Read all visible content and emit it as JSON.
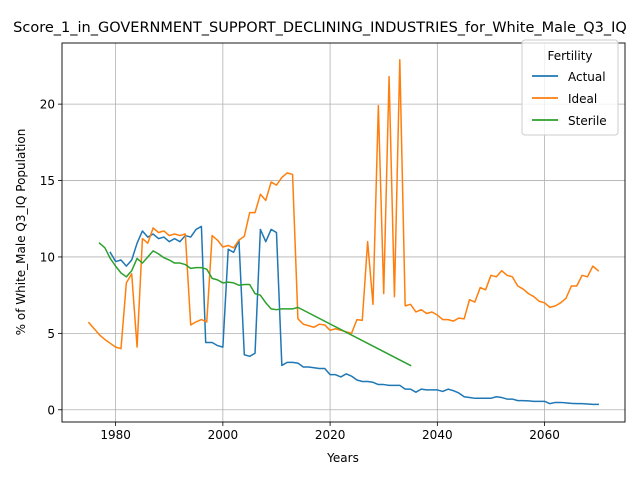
{
  "chart_data": {
    "type": "line",
    "title": "Score_1_in_GOVERNMENT_SUPPORT_DECLINING_INDUSTRIES_for_White_Male_Q3_IQ",
    "xlabel": "Years",
    "ylabel": "% of White_Male Q3_IQ Population",
    "xlim": [
      1970,
      2075
    ],
    "ylim": [
      -0.8,
      24
    ],
    "xticks": [
      1980,
      2000,
      2020,
      2040,
      2060
    ],
    "yticks": [
      0,
      5,
      10,
      15,
      20
    ],
    "grid": true,
    "legend": {
      "title": "Fertility",
      "placement": "top-right"
    },
    "series": [
      {
        "name": "Actual",
        "color": "#1f77b4",
        "points": [
          [
            1979,
            10.3
          ],
          [
            1980,
            9.7
          ],
          [
            1981,
            9.8
          ],
          [
            1982,
            9.4
          ],
          [
            1983,
            9.8
          ],
          [
            1984,
            10.9
          ],
          [
            1985,
            11.7
          ],
          [
            1986,
            11.3
          ],
          [
            1987,
            11.5
          ],
          [
            1988,
            11.2
          ],
          [
            1989,
            11.3
          ],
          [
            1990,
            11.0
          ],
          [
            1991,
            11.2
          ],
          [
            1992,
            11.0
          ],
          [
            1993,
            11.4
          ],
          [
            1994,
            11.3
          ],
          [
            1995,
            11.8
          ],
          [
            1996,
            12.0
          ],
          [
            1996.8,
            4.4
          ],
          [
            1998,
            4.4
          ],
          [
            1999,
            4.2
          ],
          [
            2000,
            4.1
          ],
          [
            2001,
            10.5
          ],
          [
            2002,
            10.3
          ],
          [
            2003,
            11.1
          ],
          [
            2004,
            3.6
          ],
          [
            2005,
            3.5
          ],
          [
            2006,
            3.7
          ],
          [
            2007,
            11.8
          ],
          [
            2008,
            11.0
          ],
          [
            2009,
            11.8
          ],
          [
            2010,
            11.6
          ],
          [
            2011,
            2.9
          ],
          [
            2012,
            3.1
          ],
          [
            2013,
            3.1
          ],
          [
            2014,
            3.05
          ],
          [
            2015,
            2.8
          ],
          [
            2016,
            2.8
          ],
          [
            2017,
            2.75
          ],
          [
            2018,
            2.7
          ],
          [
            2019,
            2.7
          ],
          [
            2020,
            2.3
          ],
          [
            2021,
            2.3
          ],
          [
            2022,
            2.15
          ],
          [
            2023,
            2.35
          ],
          [
            2024,
            2.2
          ],
          [
            2025,
            1.95
          ],
          [
            2026,
            1.85
          ],
          [
            2027,
            1.85
          ],
          [
            2028,
            1.8
          ],
          [
            2029,
            1.65
          ],
          [
            2030,
            1.65
          ],
          [
            2031,
            1.6
          ],
          [
            2032,
            1.6
          ],
          [
            2033,
            1.6
          ],
          [
            2034,
            1.35
          ],
          [
            2035,
            1.35
          ],
          [
            2036,
            1.15
          ],
          [
            2037,
            1.35
          ],
          [
            2038,
            1.3
          ],
          [
            2039,
            1.3
          ],
          [
            2040,
            1.3
          ],
          [
            2041,
            1.2
          ],
          [
            2042,
            1.35
          ],
          [
            2043,
            1.25
          ],
          [
            2044,
            1.1
          ],
          [
            2045,
            0.85
          ],
          [
            2046,
            0.8
          ],
          [
            2047,
            0.75
          ],
          [
            2048,
            0.75
          ],
          [
            2049,
            0.75
          ],
          [
            2050,
            0.75
          ],
          [
            2051,
            0.85
          ],
          [
            2052,
            0.8
          ],
          [
            2053,
            0.7
          ],
          [
            2054,
            0.7
          ],
          [
            2055,
            0.6
          ],
          [
            2056,
            0.6
          ],
          [
            2057,
            0.58
          ],
          [
            2058,
            0.55
          ],
          [
            2059,
            0.55
          ],
          [
            2060,
            0.55
          ],
          [
            2061,
            0.4
          ],
          [
            2062,
            0.48
          ],
          [
            2063,
            0.48
          ],
          [
            2064,
            0.45
          ],
          [
            2065,
            0.42
          ],
          [
            2066,
            0.4
          ],
          [
            2067,
            0.4
          ],
          [
            2068,
            0.38
          ],
          [
            2069,
            0.35
          ],
          [
            2070,
            0.35
          ]
        ]
      },
      {
        "name": "Ideal",
        "color": "#ff7f0e",
        "points": [
          [
            1975,
            5.7
          ],
          [
            1976,
            5.3
          ],
          [
            1977,
            4.9
          ],
          [
            1978,
            4.6
          ],
          [
            1979,
            4.35
          ],
          [
            1980,
            4.1
          ],
          [
            1981,
            4.0
          ],
          [
            1982,
            8.3
          ],
          [
            1983,
            8.9
          ],
          [
            1984,
            4.1
          ],
          [
            1985,
            11.2
          ],
          [
            1986,
            10.9
          ],
          [
            1987,
            11.9
          ],
          [
            1988,
            11.6
          ],
          [
            1989,
            11.7
          ],
          [
            1990,
            11.4
          ],
          [
            1991,
            11.5
          ],
          [
            1992,
            11.4
          ],
          [
            1993,
            11.5
          ],
          [
            1994,
            5.55
          ],
          [
            1995,
            5.75
          ],
          [
            1996,
            5.9
          ],
          [
            1997,
            5.75
          ],
          [
            1998,
            11.4
          ],
          [
            1999,
            11.1
          ],
          [
            2000,
            10.65
          ],
          [
            2001,
            10.75
          ],
          [
            2002,
            10.6
          ],
          [
            2003,
            11.1
          ],
          [
            2004,
            11.35
          ],
          [
            2005,
            12.9
          ],
          [
            2006,
            12.9
          ],
          [
            2007,
            14.1
          ],
          [
            2008,
            13.7
          ],
          [
            2009,
            14.9
          ],
          [
            2010,
            14.7
          ],
          [
            2011,
            15.2
          ],
          [
            2012,
            15.5
          ],
          [
            2013,
            15.4
          ],
          [
            2014,
            5.95
          ],
          [
            2015,
            5.6
          ],
          [
            2016,
            5.5
          ],
          [
            2017,
            5.4
          ],
          [
            2018,
            5.6
          ],
          [
            2019,
            5.55
          ],
          [
            2020,
            5.2
          ],
          [
            2021,
            5.3
          ],
          [
            2022,
            5.2
          ],
          [
            2023,
            5.1
          ],
          [
            2024,
            5.0
          ],
          [
            2025,
            5.9
          ],
          [
            2026,
            5.85
          ],
          [
            2027,
            11.0
          ],
          [
            2028,
            6.9
          ],
          [
            2029,
            19.9
          ],
          [
            2030,
            7.6
          ],
          [
            2031,
            21.8
          ],
          [
            2032,
            7.4
          ],
          [
            2033,
            22.9
          ],
          [
            2034,
            6.8
          ],
          [
            2035,
            6.9
          ],
          [
            2036,
            6.4
          ],
          [
            2037,
            6.55
          ],
          [
            2038,
            6.3
          ],
          [
            2039,
            6.4
          ],
          [
            2040,
            6.2
          ],
          [
            2041,
            5.9
          ],
          [
            2042,
            5.9
          ],
          [
            2043,
            5.8
          ],
          [
            2044,
            6.0
          ],
          [
            2045,
            5.95
          ],
          [
            2046,
            7.2
          ],
          [
            2047,
            7.05
          ],
          [
            2048,
            8.0
          ],
          [
            2049,
            7.85
          ],
          [
            2050,
            8.8
          ],
          [
            2051,
            8.7
          ],
          [
            2052,
            9.1
          ],
          [
            2053,
            8.8
          ],
          [
            2054,
            8.7
          ],
          [
            2055,
            8.1
          ],
          [
            2056,
            7.9
          ],
          [
            2057,
            7.6
          ],
          [
            2058,
            7.4
          ],
          [
            2059,
            7.1
          ],
          [
            2060,
            7.0
          ],
          [
            2061,
            6.7
          ],
          [
            2062,
            6.8
          ],
          [
            2063,
            7.0
          ],
          [
            2064,
            7.3
          ],
          [
            2065,
            8.1
          ],
          [
            2066,
            8.1
          ],
          [
            2067,
            8.8
          ],
          [
            2068,
            8.7
          ],
          [
            2069,
            9.4
          ],
          [
            2070,
            9.1
          ]
        ]
      },
      {
        "name": "Sterile",
        "color": "#2ca02c",
        "points": [
          [
            1977,
            10.9
          ],
          [
            1978,
            10.6
          ],
          [
            1979,
            9.9
          ],
          [
            1980,
            9.4
          ],
          [
            1981,
            8.95
          ],
          [
            1982,
            8.7
          ],
          [
            1983,
            9.1
          ],
          [
            1984,
            9.9
          ],
          [
            1985,
            9.6
          ],
          [
            1986,
            10.0
          ],
          [
            1987,
            10.4
          ],
          [
            1988,
            10.2
          ],
          [
            1989,
            9.95
          ],
          [
            1990,
            9.8
          ],
          [
            1991,
            9.6
          ],
          [
            1992,
            9.6
          ],
          [
            1993,
            9.5
          ],
          [
            1994,
            9.25
          ],
          [
            1995,
            9.3
          ],
          [
            1996,
            9.3
          ],
          [
            1997,
            9.2
          ],
          [
            1998,
            8.6
          ],
          [
            1999,
            8.5
          ],
          [
            2000,
            8.3
          ],
          [
            2001,
            8.35
          ],
          [
            2002,
            8.3
          ],
          [
            2003,
            8.15
          ],
          [
            2004,
            8.2
          ],
          [
            2005,
            8.2
          ],
          [
            2006,
            7.6
          ],
          [
            2007,
            7.5
          ],
          [
            2008,
            7.0
          ],
          [
            2009,
            6.6
          ],
          [
            2010,
            6.55
          ],
          [
            2011,
            6.6
          ],
          [
            2012,
            6.6
          ],
          [
            2013,
            6.6
          ],
          [
            2014,
            6.7
          ],
          [
            2035,
            2.9
          ]
        ]
      }
    ]
  }
}
